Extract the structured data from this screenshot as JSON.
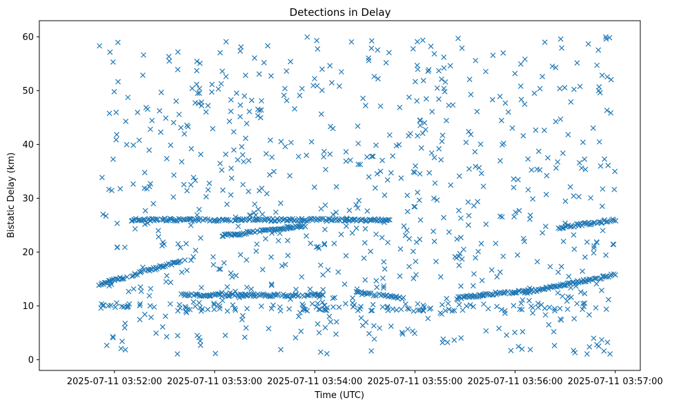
{
  "chart_data": {
    "type": "scatter",
    "title": "Detections in Delay",
    "xlabel": "Time (UTC)",
    "ylabel": "Bistatic Delay (km)",
    "marker": "x",
    "color": "#1f77b4",
    "grid": false,
    "xlim_seconds_from_035200": [
      -45,
      315
    ],
    "ylim": [
      -2,
      63
    ],
    "x_ticks": [
      {
        "label": "2025-07-11 03:52:00",
        "seconds": 0
      },
      {
        "label": "2025-07-11 03:53:00",
        "seconds": 60
      },
      {
        "label": "2025-07-11 03:54:00",
        "seconds": 120
      },
      {
        "label": "2025-07-11 03:55:00",
        "seconds": 180
      },
      {
        "label": "2025-07-11 03:56:00",
        "seconds": 240
      },
      {
        "label": "2025-07-11 03:57:00",
        "seconds": 300
      }
    ],
    "y_ticks": [
      0,
      10,
      20,
      30,
      40,
      50,
      60
    ],
    "x_data_range_seconds": [
      -9,
      300
    ],
    "tracks_description": [
      {
        "name": "rising-track-1",
        "x": [
          -9,
          42
        ],
        "y": [
          14,
          18.5
        ]
      },
      {
        "name": "flat-track-26",
        "x": [
          10,
          165
        ],
        "y": [
          26,
          26
        ]
      },
      {
        "name": "rising-track-2",
        "x": [
          65,
          115
        ],
        "y": [
          23,
          25
        ]
      },
      {
        "name": "flat-track-12",
        "x": [
          40,
          125
        ],
        "y": [
          12,
          12
        ]
      },
      {
        "name": "falling-track-3",
        "x": [
          145,
          173
        ],
        "y": [
          12.5,
          11.5
        ]
      },
      {
        "name": "rising-track-4",
        "x": [
          205,
          248
        ],
        "y": [
          11.5,
          12.8
        ]
      },
      {
        "name": "rising-track-5",
        "x": [
          246,
          300
        ],
        "y": [
          12.5,
          15.8
        ]
      },
      {
        "name": "rising-track-6",
        "x": [
          266,
          300
        ],
        "y": [
          24.5,
          26
        ]
      }
    ]
  }
}
